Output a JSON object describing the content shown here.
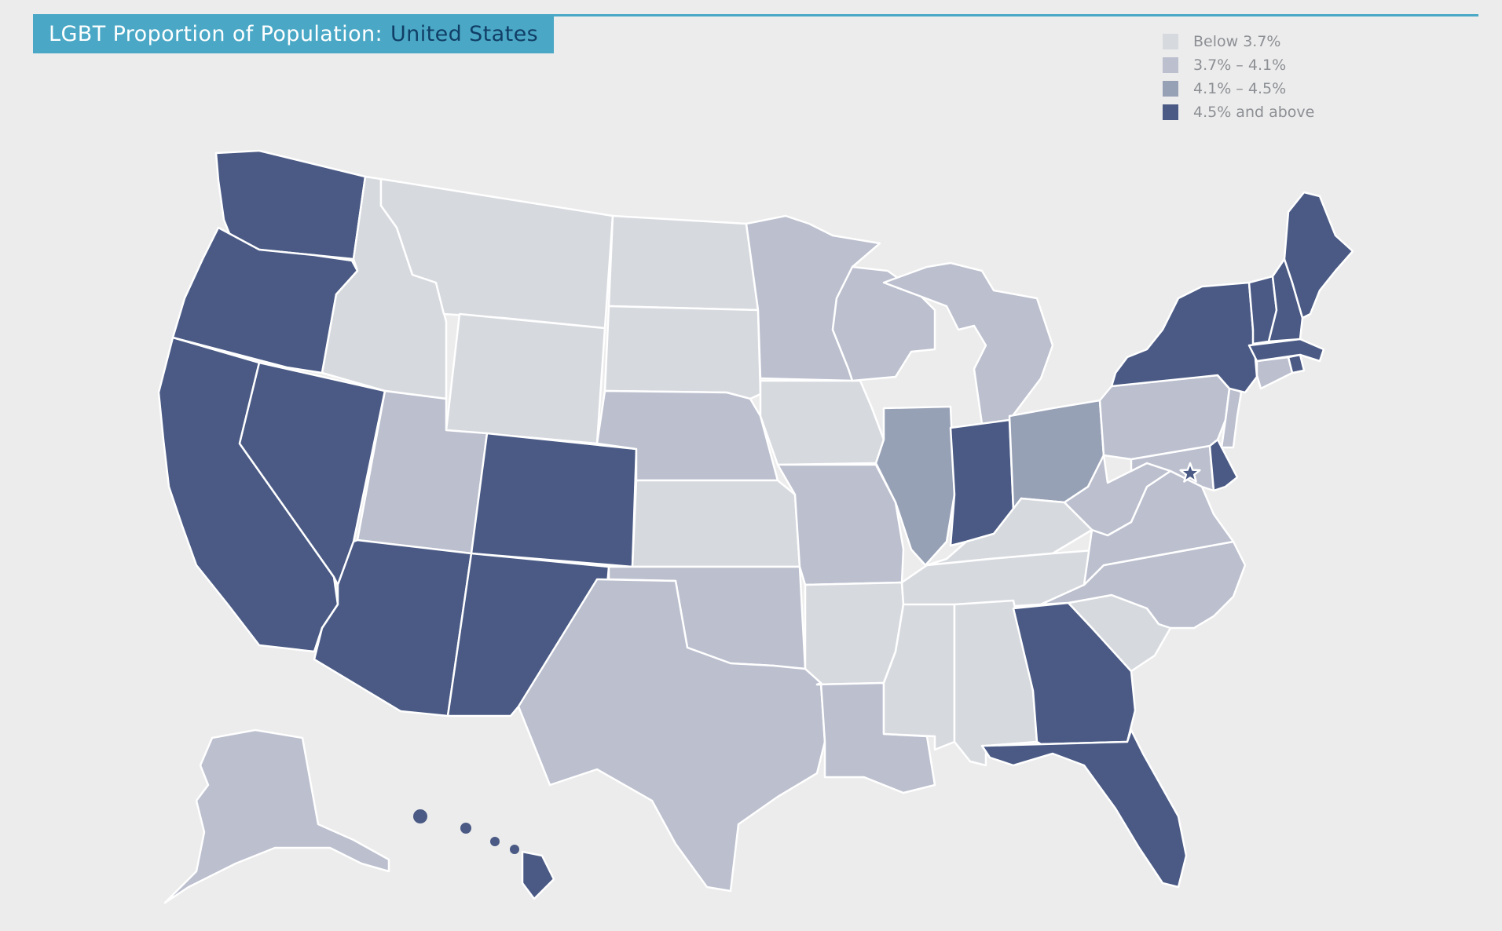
{
  "title": {
    "prefix": "LGBT Proportion of Population:",
    "place": "United States"
  },
  "legend": [
    {
      "label": "Below 3.7%",
      "color": "#d6d9de"
    },
    {
      "label": "3.7% – 4.1%",
      "color": "#bbbfce"
    },
    {
      "label": "4.1% – 4.5%",
      "color": "#97a1b6"
    },
    {
      "label": "4.5% and above",
      "color": "#4a5a85"
    }
  ],
  "map": {
    "states": [
      {
        "name": "Washington",
        "tier": 3
      },
      {
        "name": "Oregon",
        "tier": 3
      },
      {
        "name": "California",
        "tier": 3
      },
      {
        "name": "Nevada",
        "tier": 3
      },
      {
        "name": "Idaho",
        "tier": 0
      },
      {
        "name": "Montana",
        "tier": 0
      },
      {
        "name": "Wyoming",
        "tier": 0
      },
      {
        "name": "Utah",
        "tier": 1
      },
      {
        "name": "Arizona",
        "tier": 3
      },
      {
        "name": "Colorado",
        "tier": 3
      },
      {
        "name": "New Mexico",
        "tier": 3
      },
      {
        "name": "North Dakota",
        "tier": 0
      },
      {
        "name": "South Dakota",
        "tier": 0
      },
      {
        "name": "Nebraska",
        "tier": 1
      },
      {
        "name": "Kansas",
        "tier": 0
      },
      {
        "name": "Oklahoma",
        "tier": 1
      },
      {
        "name": "Texas",
        "tier": 1
      },
      {
        "name": "Minnesota",
        "tier": 1
      },
      {
        "name": "Iowa",
        "tier": 0
      },
      {
        "name": "Missouri",
        "tier": 1
      },
      {
        "name": "Arkansas",
        "tier": 0
      },
      {
        "name": "Louisiana",
        "tier": 1
      },
      {
        "name": "Wisconsin",
        "tier": 1
      },
      {
        "name": "Illinois",
        "tier": 2
      },
      {
        "name": "Michigan",
        "tier": 1
      },
      {
        "name": "Indiana",
        "tier": 3
      },
      {
        "name": "Ohio",
        "tier": 2
      },
      {
        "name": "Kentucky",
        "tier": 0
      },
      {
        "name": "Tennessee",
        "tier": 0
      },
      {
        "name": "Mississippi",
        "tier": 0
      },
      {
        "name": "Alabama",
        "tier": 0
      },
      {
        "name": "Georgia",
        "tier": 3
      },
      {
        "name": "Florida",
        "tier": 3
      },
      {
        "name": "South Carolina",
        "tier": 0
      },
      {
        "name": "North Carolina",
        "tier": 1
      },
      {
        "name": "Virginia",
        "tier": 1
      },
      {
        "name": "West Virginia",
        "tier": 1
      },
      {
        "name": "Maryland",
        "tier": 1
      },
      {
        "name": "Delaware",
        "tier": 3
      },
      {
        "name": "District of Columbia",
        "tier": 3
      },
      {
        "name": "Pennsylvania",
        "tier": 1
      },
      {
        "name": "New Jersey",
        "tier": 1
      },
      {
        "name": "New York",
        "tier": 3
      },
      {
        "name": "Connecticut",
        "tier": 1
      },
      {
        "name": "Rhode Island",
        "tier": 3
      },
      {
        "name": "Massachusetts",
        "tier": 3
      },
      {
        "name": "Vermont",
        "tier": 3
      },
      {
        "name": "New Hampshire",
        "tier": 3
      },
      {
        "name": "Maine",
        "tier": 3
      },
      {
        "name": "Alaska",
        "tier": 1
      },
      {
        "name": "Hawaii",
        "tier": 3
      }
    ]
  }
}
